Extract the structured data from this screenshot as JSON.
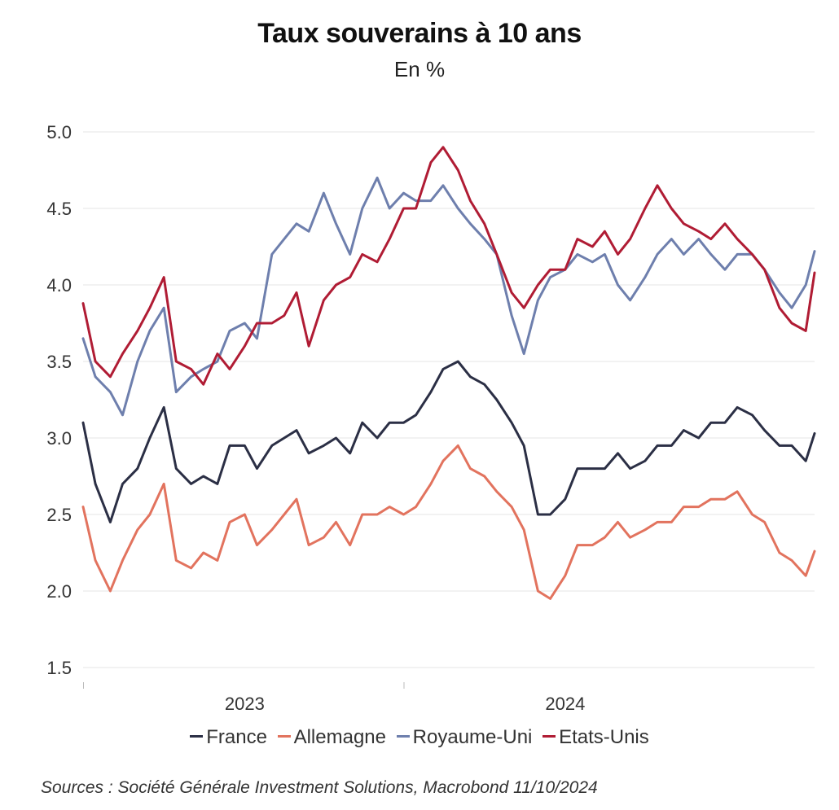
{
  "title": "Taux souverains à 10 ans",
  "subtitle": "En %",
  "source": "Sources : Société Générale Investment Solutions, Macrobond 11/10/2024",
  "chart_data": {
    "type": "line",
    "title": "Taux souverains à 10 ans",
    "subtitle": "En %",
    "xlabel": "",
    "ylabel": "",
    "ylim": [
      1.5,
      5.0
    ],
    "yticks": [
      "1.5",
      "2.0",
      "2.5",
      "3.0",
      "3.5",
      "4.0",
      "4.5",
      "5.0"
    ],
    "xticks": [
      "2023",
      "2024"
    ],
    "xlim": [
      "2022-07-01",
      "2024-10-11"
    ],
    "grid": "horizontal",
    "legend_position": "bottom",
    "series": [
      {
        "name": "France",
        "color": "#2b2f45",
        "x": [
          "2022-07-01",
          "2022-07-15",
          "2022-08-01",
          "2022-08-15",
          "2022-09-01",
          "2022-09-15",
          "2022-10-01",
          "2022-10-15",
          "2022-11-01",
          "2022-11-15",
          "2022-12-01",
          "2022-12-15",
          "2023-01-01",
          "2023-01-15",
          "2023-02-01",
          "2023-02-15",
          "2023-03-01",
          "2023-03-15",
          "2023-04-01",
          "2023-04-15",
          "2023-05-01",
          "2023-05-15",
          "2023-06-01",
          "2023-06-15",
          "2023-07-01",
          "2023-07-15",
          "2023-08-01",
          "2023-08-15",
          "2023-09-01",
          "2023-09-15",
          "2023-10-01",
          "2023-10-15",
          "2023-11-01",
          "2023-11-15",
          "2023-12-01",
          "2023-12-15",
          "2024-01-01",
          "2024-01-15",
          "2024-02-01",
          "2024-02-15",
          "2024-03-01",
          "2024-03-15",
          "2024-04-01",
          "2024-04-15",
          "2024-05-01",
          "2024-05-15",
          "2024-06-01",
          "2024-06-15",
          "2024-07-01",
          "2024-07-15",
          "2024-08-01",
          "2024-08-15",
          "2024-09-01",
          "2024-09-15",
          "2024-10-01",
          "2024-10-11"
        ],
        "y": [
          3.1,
          2.7,
          2.45,
          2.7,
          2.8,
          3.0,
          3.2,
          2.8,
          2.7,
          2.75,
          2.7,
          2.95,
          2.95,
          2.8,
          2.95,
          3.0,
          3.05,
          2.9,
          2.95,
          3.0,
          2.9,
          3.1,
          3.0,
          3.1,
          3.1,
          3.15,
          3.3,
          3.45,
          3.5,
          3.4,
          3.35,
          3.25,
          3.1,
          2.95,
          2.5,
          2.5,
          2.6,
          2.8,
          2.8,
          2.8,
          2.9,
          2.8,
          2.85,
          2.95,
          2.95,
          3.05,
          3.0,
          3.1,
          3.1,
          3.2,
          3.15,
          3.05,
          2.95,
          2.95,
          2.85,
          3.03
        ]
      },
      {
        "name": "Allemagne",
        "color": "#e2735e",
        "x": [
          "2022-07-01",
          "2022-07-15",
          "2022-08-01",
          "2022-08-15",
          "2022-09-01",
          "2022-09-15",
          "2022-10-01",
          "2022-10-15",
          "2022-11-01",
          "2022-11-15",
          "2022-12-01",
          "2022-12-15",
          "2023-01-01",
          "2023-01-15",
          "2023-02-01",
          "2023-02-15",
          "2023-03-01",
          "2023-03-15",
          "2023-04-01",
          "2023-04-15",
          "2023-05-01",
          "2023-05-15",
          "2023-06-01",
          "2023-06-15",
          "2023-07-01",
          "2023-07-15",
          "2023-08-01",
          "2023-08-15",
          "2023-09-01",
          "2023-09-15",
          "2023-10-01",
          "2023-10-15",
          "2023-11-01",
          "2023-11-15",
          "2023-12-01",
          "2023-12-15",
          "2024-01-01",
          "2024-01-15",
          "2024-02-01",
          "2024-02-15",
          "2024-03-01",
          "2024-03-15",
          "2024-04-01",
          "2024-04-15",
          "2024-05-01",
          "2024-05-15",
          "2024-06-01",
          "2024-06-15",
          "2024-07-01",
          "2024-07-15",
          "2024-08-01",
          "2024-08-15",
          "2024-09-01",
          "2024-09-15",
          "2024-10-01",
          "2024-10-11"
        ],
        "y": [
          2.55,
          2.2,
          2.0,
          2.2,
          2.4,
          2.5,
          2.7,
          2.2,
          2.15,
          2.25,
          2.2,
          2.45,
          2.5,
          2.3,
          2.4,
          2.5,
          2.6,
          2.3,
          2.35,
          2.45,
          2.3,
          2.5,
          2.5,
          2.55,
          2.5,
          2.55,
          2.7,
          2.85,
          2.95,
          2.8,
          2.75,
          2.65,
          2.55,
          2.4,
          2.0,
          1.95,
          2.1,
          2.3,
          2.3,
          2.35,
          2.45,
          2.35,
          2.4,
          2.45,
          2.45,
          2.55,
          2.55,
          2.6,
          2.6,
          2.65,
          2.5,
          2.45,
          2.25,
          2.2,
          2.1,
          2.26
        ]
      },
      {
        "name": "Royaume-Uni",
        "color": "#6e7fad",
        "x": [
          "2022-07-01",
          "2022-07-15",
          "2022-08-01",
          "2022-08-15",
          "2022-09-01",
          "2022-09-15",
          "2022-10-01",
          "2022-10-15",
          "2022-11-01",
          "2022-11-15",
          "2022-12-01",
          "2022-12-15",
          "2023-01-01",
          "2023-01-15",
          "2023-02-01",
          "2023-02-15",
          "2023-03-01",
          "2023-03-15",
          "2023-04-01",
          "2023-04-15",
          "2023-05-01",
          "2023-05-15",
          "2023-06-01",
          "2023-06-15",
          "2023-07-01",
          "2023-07-15",
          "2023-08-01",
          "2023-08-15",
          "2023-09-01",
          "2023-09-15",
          "2023-10-01",
          "2023-10-15",
          "2023-11-01",
          "2023-11-15",
          "2023-12-01",
          "2023-12-15",
          "2024-01-01",
          "2024-01-15",
          "2024-02-01",
          "2024-02-15",
          "2024-03-01",
          "2024-03-15",
          "2024-04-01",
          "2024-04-15",
          "2024-05-01",
          "2024-05-15",
          "2024-06-01",
          "2024-06-15",
          "2024-07-01",
          "2024-07-15",
          "2024-08-01",
          "2024-08-15",
          "2024-09-01",
          "2024-09-15",
          "2024-10-01",
          "2024-10-11"
        ],
        "y": [
          3.65,
          3.4,
          3.3,
          3.15,
          3.5,
          3.7,
          3.85,
          3.3,
          3.4,
          3.45,
          3.5,
          3.7,
          3.75,
          3.65,
          4.2,
          4.3,
          4.4,
          4.35,
          4.6,
          4.4,
          4.2,
          4.5,
          4.7,
          4.5,
          4.6,
          4.55,
          4.55,
          4.65,
          4.5,
          4.4,
          4.3,
          4.2,
          3.8,
          3.55,
          3.9,
          4.05,
          4.1,
          4.2,
          4.15,
          4.2,
          4.0,
          3.9,
          4.05,
          4.2,
          4.3,
          4.2,
          4.3,
          4.2,
          4.1,
          4.2,
          4.2,
          4.1,
          3.95,
          3.85,
          4.0,
          4.22
        ]
      },
      {
        "name": "Etats-Unis",
        "color": "#b01c34",
        "x": [
          "2022-07-01",
          "2022-07-15",
          "2022-08-01",
          "2022-08-15",
          "2022-09-01",
          "2022-09-15",
          "2022-10-01",
          "2022-10-15",
          "2022-11-01",
          "2022-11-15",
          "2022-12-01",
          "2022-12-15",
          "2023-01-01",
          "2023-01-15",
          "2023-02-01",
          "2023-02-15",
          "2023-03-01",
          "2023-03-15",
          "2023-04-01",
          "2023-04-15",
          "2023-05-01",
          "2023-05-15",
          "2023-06-01",
          "2023-06-15",
          "2023-07-01",
          "2023-07-15",
          "2023-08-01",
          "2023-08-15",
          "2023-09-01",
          "2023-09-15",
          "2023-10-01",
          "2023-10-15",
          "2023-11-01",
          "2023-11-15",
          "2023-12-01",
          "2023-12-15",
          "2024-01-01",
          "2024-01-15",
          "2024-02-01",
          "2024-02-15",
          "2024-03-01",
          "2024-03-15",
          "2024-04-01",
          "2024-04-15",
          "2024-05-01",
          "2024-05-15",
          "2024-06-01",
          "2024-06-15",
          "2024-07-01",
          "2024-07-15",
          "2024-08-01",
          "2024-08-15",
          "2024-09-01",
          "2024-09-15",
          "2024-10-01",
          "2024-10-11"
        ],
        "y": [
          3.88,
          3.5,
          3.4,
          3.55,
          3.7,
          3.85,
          4.05,
          3.5,
          3.45,
          3.35,
          3.55,
          3.45,
          3.6,
          3.75,
          3.75,
          3.8,
          3.95,
          3.6,
          3.9,
          4.0,
          4.05,
          4.2,
          4.15,
          4.3,
          4.5,
          4.5,
          4.8,
          4.9,
          4.75,
          4.55,
          4.4,
          4.2,
          3.95,
          3.85,
          4.0,
          4.1,
          4.1,
          4.3,
          4.25,
          4.35,
          4.2,
          4.3,
          4.5,
          4.65,
          4.5,
          4.4,
          4.35,
          4.3,
          4.4,
          4.3,
          4.2,
          4.1,
          3.85,
          3.75,
          3.7,
          4.08
        ]
      }
    ]
  }
}
